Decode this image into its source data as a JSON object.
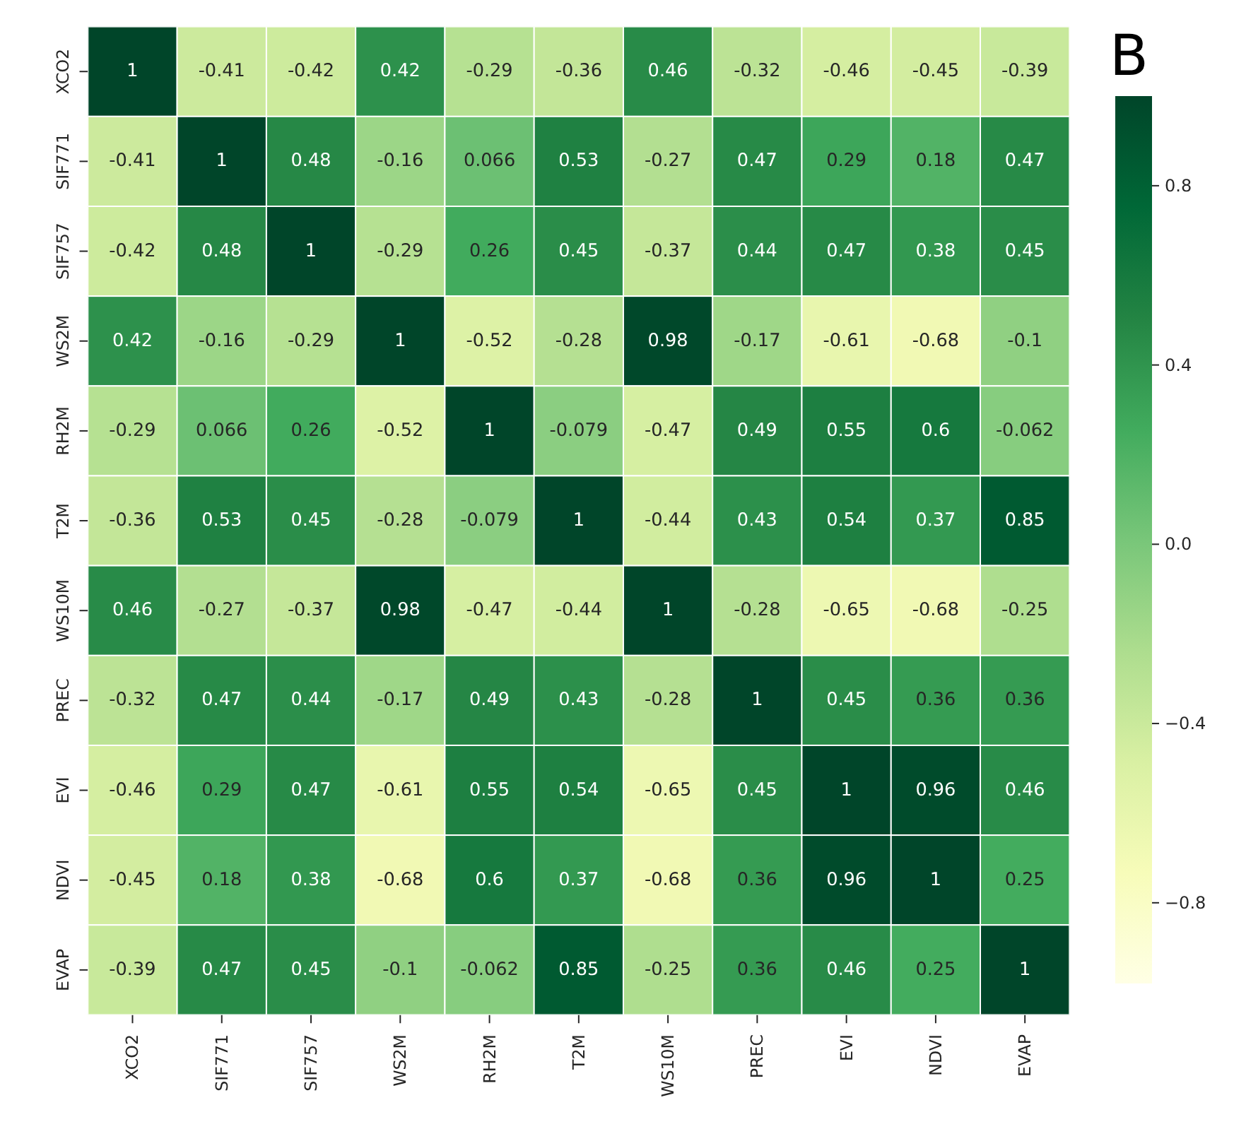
{
  "chart_data": {
    "type": "heatmap",
    "title": "B",
    "categories": [
      "XCO2",
      "SIF771",
      "SIF757",
      "WS2M",
      "RH2M",
      "T2M",
      "WS10M",
      "PREC",
      "EVI",
      "NDVI",
      "EVAP"
    ],
    "y_categories": [
      "XCO2",
      "SIF771",
      "SIF757",
      "WS2M",
      "RH2M",
      "T2M",
      "WS10M",
      "PREC",
      "EVI",
      "NDVI",
      "EVAP"
    ],
    "cells": [
      [
        1,
        -0.41,
        -0.42,
        0.42,
        -0.29,
        -0.36,
        0.46,
        -0.32,
        -0.46,
        -0.45,
        -0.39
      ],
      [
        -0.41,
        1,
        0.48,
        -0.16,
        0.066,
        0.53,
        -0.27,
        0.47,
        0.29,
        0.18,
        0.47
      ],
      [
        -0.42,
        0.48,
        1,
        -0.29,
        0.26,
        0.45,
        -0.37,
        0.44,
        0.47,
        0.38,
        0.45
      ],
      [
        0.42,
        -0.16,
        -0.29,
        1,
        -0.52,
        -0.28,
        0.98,
        -0.17,
        -0.61,
        -0.68,
        -0.1
      ],
      [
        -0.29,
        0.066,
        0.26,
        -0.52,
        1,
        -0.079,
        -0.47,
        0.49,
        0.55,
        0.6,
        -0.062
      ],
      [
        -0.36,
        0.53,
        0.45,
        -0.28,
        -0.079,
        1,
        -0.44,
        0.43,
        0.54,
        0.37,
        0.85
      ],
      [
        0.46,
        -0.27,
        -0.37,
        0.98,
        -0.47,
        -0.44,
        1,
        -0.28,
        -0.65,
        -0.68,
        -0.25
      ],
      [
        -0.32,
        0.47,
        0.44,
        -0.17,
        0.49,
        0.43,
        -0.28,
        1,
        0.45,
        0.36,
        0.36
      ],
      [
        -0.46,
        0.29,
        0.47,
        -0.61,
        0.55,
        0.54,
        -0.65,
        0.45,
        1,
        0.96,
        0.46
      ],
      [
        -0.45,
        0.18,
        0.38,
        -0.68,
        0.6,
        0.37,
        -0.68,
        0.36,
        0.96,
        1,
        0.25
      ],
      [
        -0.39,
        0.47,
        0.45,
        -0.1,
        -0.062,
        0.85,
        -0.25,
        0.36,
        0.46,
        0.25,
        1
      ]
    ],
    "clim": [
      -0.98,
      1
    ],
    "cticks": [
      {
        "value": -0.8,
        "label": "−0.8"
      },
      {
        "value": -0.4,
        "label": "−0.4"
      },
      {
        "value": 0,
        "label": "0.0"
      },
      0.4,
      0.8
    ],
    "data_labels": true
  }
}
